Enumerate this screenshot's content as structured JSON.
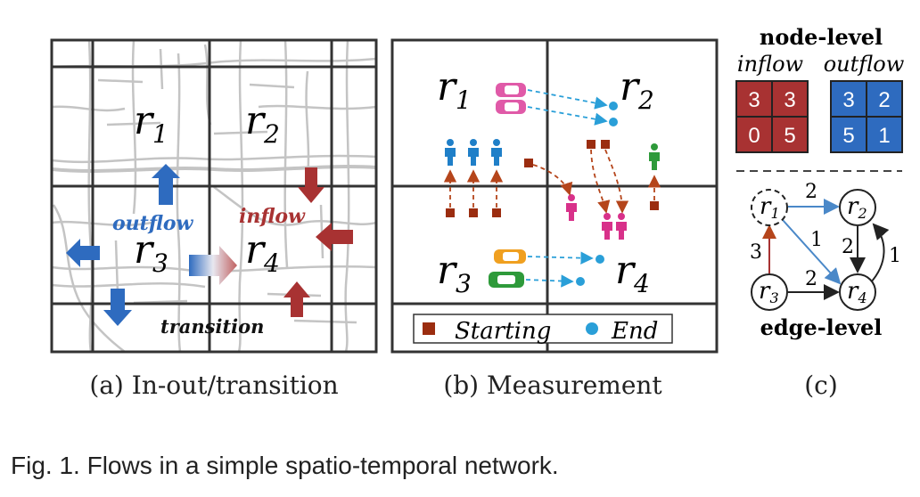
{
  "panel_a": {
    "regions": [
      "r",
      "r",
      "r",
      "r"
    ],
    "region_subs": [
      "1",
      "2",
      "3",
      "4"
    ],
    "outflow_label": "outflow",
    "inflow_label": "inflow",
    "transition_label": "transition",
    "caption": "(a) In-out/transition",
    "colors": {
      "outflow": "#2e6bbf",
      "inflow": "#a83232"
    }
  },
  "panel_b": {
    "regions": [
      "r",
      "r",
      "r",
      "r"
    ],
    "region_subs": [
      "1",
      "2",
      "3",
      "4"
    ],
    "legend_starting": "Starting",
    "legend_end": "End",
    "caption": "(b) Measurement",
    "colors": {
      "start": "#9b2d10",
      "end": "#2a9fd8"
    }
  },
  "panel_c": {
    "node_level_title": "node-level",
    "inflow_label": "inflow",
    "outflow_label": "outflow",
    "inflow_values": [
      "3",
      "3",
      "0",
      "5"
    ],
    "outflow_values": [
      "3",
      "2",
      "5",
      "1"
    ],
    "edge_level_title": "edge-level",
    "nodes": [
      "r",
      "r",
      "r",
      "r"
    ],
    "node_subs": [
      "1",
      "2",
      "3",
      "4"
    ],
    "edge_weights": {
      "r1_r2": "2",
      "r1_r4": "1",
      "r3_r1": "3",
      "r3_r4": "2",
      "r2_r4": "2",
      "r4_r2": "1"
    },
    "caption": "(c)",
    "colors": {
      "inflow_cell": "#a83232",
      "outflow_cell": "#2e6bbf"
    }
  },
  "figure_caption": "Fig. 1. Flows in a simple spatio-temporal network."
}
